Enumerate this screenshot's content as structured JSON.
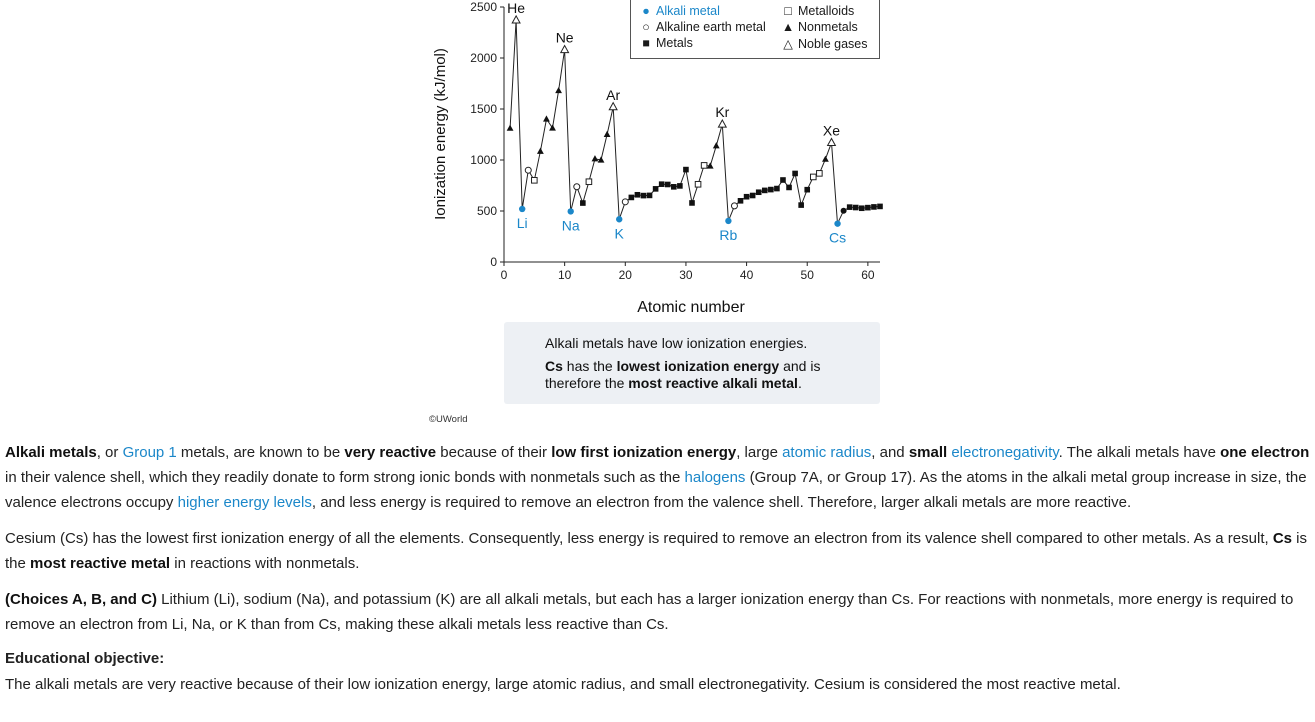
{
  "chart_data": {
    "type": "scatter",
    "title": "",
    "xlabel": "Atomic number",
    "ylabel": "Ionization energy (kJ/mol)",
    "xlim": [
      0,
      62
    ],
    "ylim": [
      0,
      2500
    ],
    "xticks": [
      "0",
      "10",
      "20",
      "30",
      "40",
      "50",
      "60"
    ],
    "yticks": [
      "0",
      "500",
      "1000",
      "1500",
      "2000",
      "2500"
    ],
    "grid": false,
    "legend_position": "top-right",
    "legend": [
      {
        "label": "Alkali metal",
        "marker": "filled-circle",
        "color": "#1b87c9"
      },
      {
        "label": "Alkaline earth metal",
        "marker": "open-circle"
      },
      {
        "label": "Metals",
        "marker": "filled-square"
      },
      {
        "label": "Metalloids",
        "marker": "open-square"
      },
      {
        "label": "Nonmetals",
        "marker": "filled-triangle"
      },
      {
        "label": "Noble gases",
        "marker": "open-triangle"
      }
    ],
    "points": [
      {
        "z": 1,
        "ie": 1312,
        "cat": "nonmetal"
      },
      {
        "z": 2,
        "ie": 2372,
        "cat": "noble",
        "label": "He"
      },
      {
        "z": 3,
        "ie": 520,
        "cat": "alkali",
        "label": "Li"
      },
      {
        "z": 4,
        "ie": 900,
        "cat": "alkaline"
      },
      {
        "z": 5,
        "ie": 801,
        "cat": "metalloid"
      },
      {
        "z": 6,
        "ie": 1086,
        "cat": "nonmetal"
      },
      {
        "z": 7,
        "ie": 1402,
        "cat": "nonmetal"
      },
      {
        "z": 8,
        "ie": 1314,
        "cat": "nonmetal"
      },
      {
        "z": 9,
        "ie": 1681,
        "cat": "nonmetal"
      },
      {
        "z": 10,
        "ie": 2081,
        "cat": "noble",
        "label": "Ne"
      },
      {
        "z": 11,
        "ie": 496,
        "cat": "alkali",
        "label": "Na"
      },
      {
        "z": 12,
        "ie": 738,
        "cat": "alkaline"
      },
      {
        "z": 13,
        "ie": 578,
        "cat": "metal"
      },
      {
        "z": 14,
        "ie": 787,
        "cat": "metalloid"
      },
      {
        "z": 15,
        "ie": 1012,
        "cat": "nonmetal"
      },
      {
        "z": 16,
        "ie": 1000,
        "cat": "nonmetal"
      },
      {
        "z": 17,
        "ie": 1251,
        "cat": "nonmetal"
      },
      {
        "z": 18,
        "ie": 1521,
        "cat": "noble",
        "label": "Ar"
      },
      {
        "z": 19,
        "ie": 419,
        "cat": "alkali",
        "label": "K"
      },
      {
        "z": 20,
        "ie": 590,
        "cat": "alkaline"
      },
      {
        "z": 21,
        "ie": 633,
        "cat": "metal"
      },
      {
        "z": 22,
        "ie": 659,
        "cat": "metal"
      },
      {
        "z": 23,
        "ie": 651,
        "cat": "metal"
      },
      {
        "z": 24,
        "ie": 653,
        "cat": "metal"
      },
      {
        "z": 25,
        "ie": 717,
        "cat": "metal"
      },
      {
        "z": 26,
        "ie": 763,
        "cat": "metal"
      },
      {
        "z": 27,
        "ie": 760,
        "cat": "metal"
      },
      {
        "z": 28,
        "ie": 737,
        "cat": "metal"
      },
      {
        "z": 29,
        "ie": 746,
        "cat": "metal"
      },
      {
        "z": 30,
        "ie": 906,
        "cat": "metal"
      },
      {
        "z": 31,
        "ie": 579,
        "cat": "metal"
      },
      {
        "z": 32,
        "ie": 762,
        "cat": "metalloid"
      },
      {
        "z": 33,
        "ie": 947,
        "cat": "metalloid"
      },
      {
        "z": 34,
        "ie": 941,
        "cat": "nonmetal"
      },
      {
        "z": 35,
        "ie": 1140,
        "cat": "nonmetal"
      },
      {
        "z": 36,
        "ie": 1351,
        "cat": "noble",
        "label": "Kr"
      },
      {
        "z": 37,
        "ie": 403,
        "cat": "alkali",
        "label": "Rb"
      },
      {
        "z": 38,
        "ie": 550,
        "cat": "alkaline"
      },
      {
        "z": 39,
        "ie": 600,
        "cat": "metal"
      },
      {
        "z": 40,
        "ie": 640,
        "cat": "metal"
      },
      {
        "z": 41,
        "ie": 652,
        "cat": "metal"
      },
      {
        "z": 42,
        "ie": 684,
        "cat": "metal"
      },
      {
        "z": 43,
        "ie": 702,
        "cat": "metal"
      },
      {
        "z": 44,
        "ie": 710,
        "cat": "metal"
      },
      {
        "z": 45,
        "ie": 720,
        "cat": "metal"
      },
      {
        "z": 46,
        "ie": 804,
        "cat": "metal"
      },
      {
        "z": 47,
        "ie": 731,
        "cat": "metal"
      },
      {
        "z": 48,
        "ie": 868,
        "cat": "metal"
      },
      {
        "z": 49,
        "ie": 558,
        "cat": "metal"
      },
      {
        "z": 50,
        "ie": 709,
        "cat": "metal"
      },
      {
        "z": 51,
        "ie": 834,
        "cat": "metalloid"
      },
      {
        "z": 52,
        "ie": 869,
        "cat": "metalloid"
      },
      {
        "z": 53,
        "ie": 1008,
        "cat": "nonmetal"
      },
      {
        "z": 54,
        "ie": 1170,
        "cat": "noble",
        "label": "Xe"
      },
      {
        "z": 55,
        "ie": 376,
        "cat": "alkali",
        "label": "Cs"
      },
      {
        "z": 56,
        "ie": 503,
        "cat": "alkaline-filled"
      },
      {
        "z": 57,
        "ie": 538,
        "cat": "metal"
      },
      {
        "z": 58,
        "ie": 534,
        "cat": "metal"
      },
      {
        "z": 59,
        "ie": 527,
        "cat": "metal"
      },
      {
        "z": 60,
        "ie": 533,
        "cat": "metal"
      },
      {
        "z": 61,
        "ie": 540,
        "cat": "metal"
      },
      {
        "z": 62,
        "ie": 545,
        "cat": "metal"
      }
    ]
  },
  "callout": {
    "line1": "Alkali metals have low ionization energies.",
    "line2_cs": "Cs",
    "line2_a": " has the ",
    "line2_b": "lowest ionization energy",
    "line2_c": " and is therefore the ",
    "line2_d": "most reactive alkali metal",
    "line2_e": "."
  },
  "copyright": "©UWorld",
  "colors": {
    "alkali": "#1b87c9",
    "link": "#1b87c9",
    "callout_bg": "#edf0f4"
  },
  "explanation": {
    "p1": {
      "t1": "Alkali metals",
      "t2": ", or ",
      "link1": "Group 1",
      "t3": " metals, are known to be ",
      "t4": "very reactive",
      "t5": " because of their ",
      "t6": "low first ionization energy",
      "t7": ", large ",
      "link2": "atomic radius",
      "t8": ", and ",
      "t9": "small",
      "t10": " ",
      "link3": "electronegativity",
      "t11": ".  The alkali metals have ",
      "t12": "one electron",
      "t13": " in their valence shell, which they readily donate to form strong ionic bonds with nonmetals such as the ",
      "link4": "halogens",
      "t14": " (Group 7A, or Group 17).  As the atoms in the alkali metal group increase in size, the valence electrons occupy ",
      "link5": "higher energy levels",
      "t15": ", and less energy is required to remove an electron from the valence shell.  Therefore, larger alkali metals are more reactive."
    },
    "p2": {
      "t1": "Cesium (Cs) has the lowest first ionization energy of all the elements.  Consequently, less energy is required to remove an electron from its valence shell compared to other metals.  As a result, ",
      "t2": "Cs",
      "t3": " is the ",
      "t4": "most reactive metal",
      "t5": " in reactions with nonmetals."
    },
    "p3": {
      "t1": "(Choices A, B, and C)",
      "t2": "  Lithium (Li), sodium (Na), and potassium (K) are all alkali metals, but each has a larger ionization energy than Cs.  For reactions with nonmetals, more energy is required to remove an electron from Li, Na, or K than from Cs, making these alkali metals less reactive than Cs."
    },
    "edu_heading": "Educational objective:",
    "edu_text": "The alkali metals are very reactive because of their low ionization energy, large atomic radius, and small electronegativity.  Cesium is considered the most reactive metal."
  }
}
